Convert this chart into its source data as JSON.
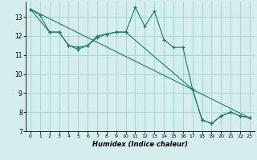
{
  "xlabel": "Humidex (Indice chaleur)",
  "bg_color": "#d4eeed",
  "grid_color": "#aed8d5",
  "line_color": "#1a7a6e",
  "xlim": [
    -0.5,
    23.5
  ],
  "ylim": [
    7,
    13.8
  ],
  "yticks": [
    7,
    8,
    9,
    10,
    11,
    12,
    13
  ],
  "xticks": [
    0,
    1,
    2,
    3,
    4,
    5,
    6,
    7,
    8,
    9,
    10,
    11,
    12,
    13,
    14,
    15,
    16,
    17,
    18,
    19,
    20,
    21,
    22,
    23
  ],
  "line1_x": [
    0,
    1,
    2,
    3,
    4,
    5,
    6,
    7,
    8,
    9,
    10,
    11,
    12,
    13,
    14,
    15,
    16,
    17,
    18,
    19,
    20,
    21,
    22,
    23
  ],
  "line1_y": [
    13.4,
    13.1,
    12.2,
    12.2,
    11.5,
    11.4,
    11.5,
    12.0,
    12.1,
    12.2,
    12.2,
    13.5,
    12.5,
    13.3,
    11.8,
    11.4,
    11.4,
    9.2,
    7.6,
    7.4,
    7.8,
    8.0,
    7.8,
    7.7
  ],
  "line2_x": [
    0,
    2,
    3,
    4,
    5,
    6,
    7,
    8,
    9,
    10,
    17,
    18,
    19,
    20,
    21,
    22,
    23
  ],
  "line2_y": [
    13.4,
    12.2,
    12.2,
    11.5,
    11.3,
    11.5,
    11.9,
    12.1,
    12.2,
    12.2,
    9.2,
    7.6,
    7.4,
    7.8,
    8.0,
    7.8,
    7.7
  ],
  "line3_x": [
    0,
    23
  ],
  "line3_y": [
    13.4,
    7.7
  ]
}
